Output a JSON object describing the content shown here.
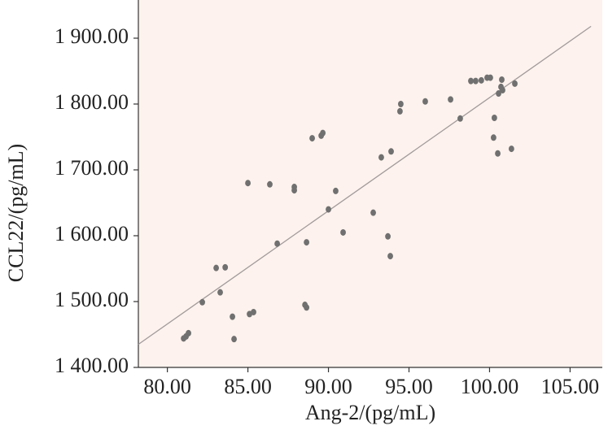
{
  "chart_data": {
    "type": "scatter",
    "x_label": "Ang-2/(pg/mL)",
    "y_label": "CCL22/(pg/mL)",
    "color": "#707070",
    "background": "#fdf2ed",
    "x": [
      81.01,
      81.16,
      81.31,
      82.17,
      83.03,
      83.28,
      83.59,
      84.04,
      84.14,
      85.1,
      85.35,
      85.0,
      86.36,
      86.82,
      87.88,
      87.88,
      88.64,
      88.54,
      88.64,
      88.99,
      89.55,
      89.65,
      90.0,
      90.45,
      90.91,
      92.78,
      93.28,
      93.69,
      93.84,
      93.89,
      94.44,
      94.49,
      96.01,
      97.58,
      98.18,
      98.84,
      99.14,
      99.49,
      99.85,
      100.05,
      100.25,
      100.3,
      100.51,
      100.56,
      100.71,
      100.76,
      100.81,
      101.36,
      101.57
    ],
    "values": [
      1444,
      1447,
      1452,
      1499,
      1551,
      1514,
      1552,
      1477,
      1443,
      1481,
      1484,
      1680,
      1678,
      1588,
      1674,
      1669,
      1491,
      1495,
      1590,
      1748,
      1752,
      1756,
      1640,
      1668,
      1605,
      1635,
      1719,
      1599,
      1569,
      1728,
      1789,
      1800,
      1804,
      1807,
      1778,
      1835,
      1835,
      1836,
      1840,
      1840,
      1749,
      1779,
      1725,
      1816,
      1826,
      1837,
      1821,
      1732,
      1831
    ],
    "trendline": {
      "x": [
        78.2,
        106.3
      ],
      "values": [
        1435,
        1918
      ],
      "color": "#a09a9a"
    },
    "xlim": [
      78.2,
      107
    ],
    "ylim": [
      1400,
      1958
    ],
    "xticks": [
      {
        "value": 80,
        "label": "80.00"
      },
      {
        "value": 85,
        "label": "85.00"
      },
      {
        "value": 90,
        "label": "90.00"
      },
      {
        "value": 95,
        "label": "95.00"
      },
      {
        "value": 100,
        "label": "100.00"
      },
      {
        "value": 105,
        "label": "105.00"
      }
    ],
    "yticks": [
      {
        "value": 1400,
        "label": "1 400.00"
      },
      {
        "value": 1500,
        "label": "1 500.00"
      },
      {
        "value": 1600,
        "label": "1 600.00"
      },
      {
        "value": 1700,
        "label": "1 700.00"
      },
      {
        "value": 1800,
        "label": "1 800.00"
      },
      {
        "value": 1900,
        "label": "1 900.00"
      }
    ]
  }
}
